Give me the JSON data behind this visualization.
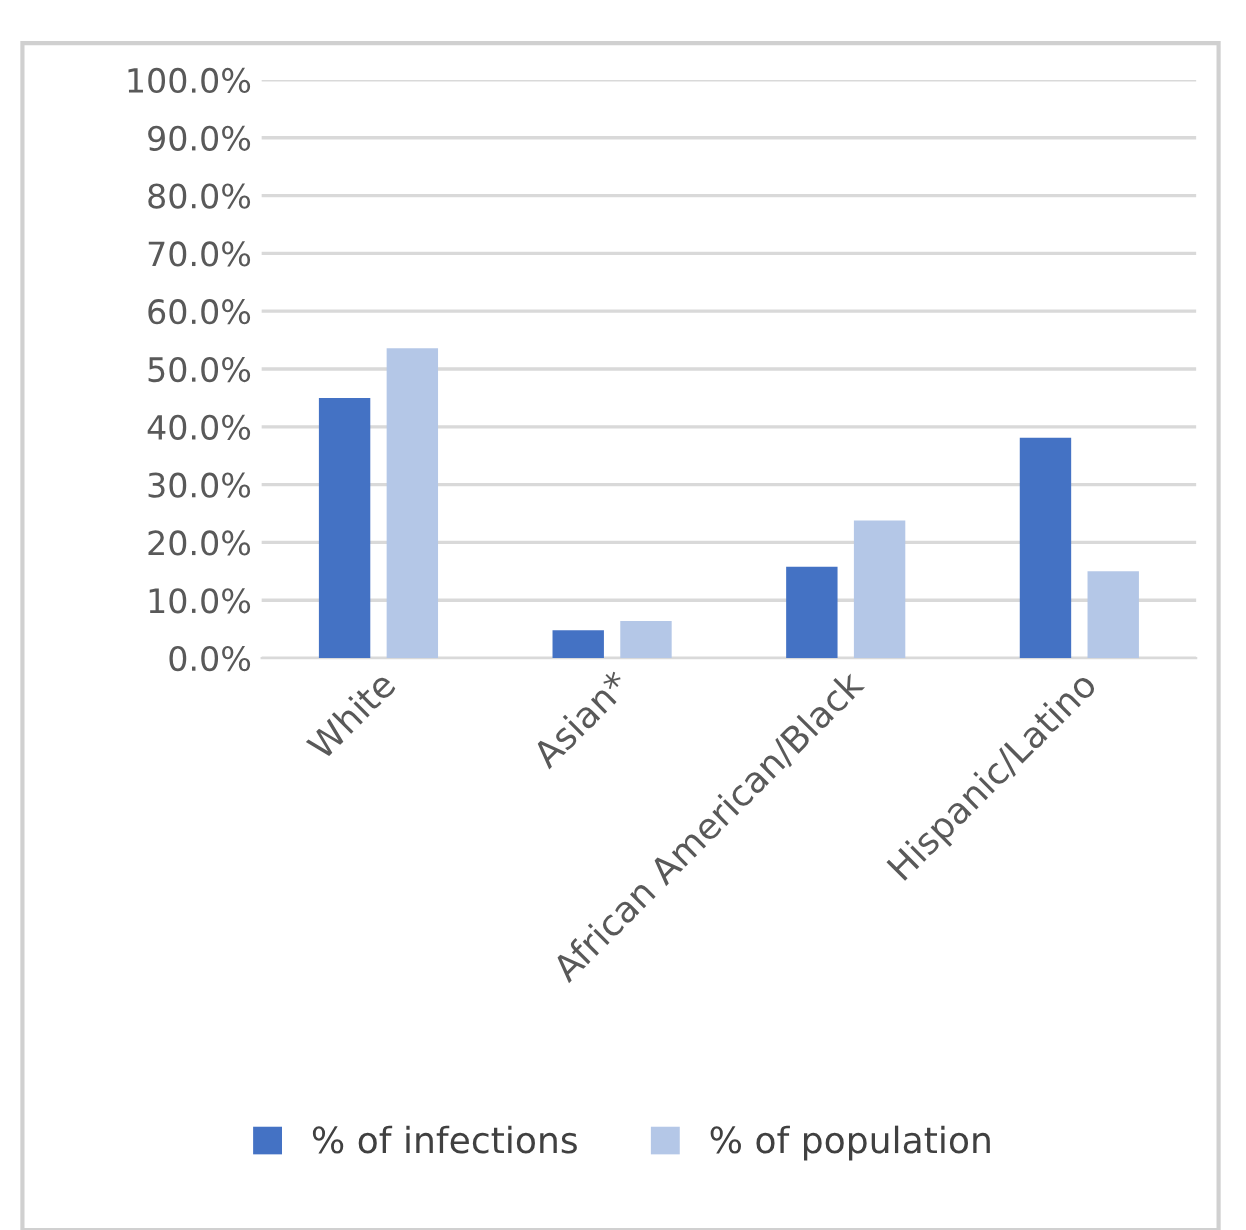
{
  "chart_data": {
    "type": "bar",
    "categories": [
      "White",
      "Asian*",
      "African American/Black",
      "Hispanic/Latino"
    ],
    "series": [
      {
        "name": "% of infections",
        "color": "#4472c4",
        "values": [
          45.0,
          4.8,
          15.8,
          38.1
        ]
      },
      {
        "name": "% of population",
        "color": "#b4c7e7",
        "values": [
          53.6,
          6.4,
          23.8,
          15.0
        ]
      }
    ],
    "ylim": [
      0,
      100
    ],
    "yticks": [
      {
        "value": 0,
        "label": "0.0%"
      },
      {
        "value": 10,
        "label": "10.0%"
      },
      {
        "value": 20,
        "label": "20.0%"
      },
      {
        "value": 30,
        "label": "30.0%"
      },
      {
        "value": 40,
        "label": "40.0%"
      },
      {
        "value": 50,
        "label": "50.0%"
      },
      {
        "value": 60,
        "label": "60.0%"
      },
      {
        "value": 70,
        "label": "70.0%"
      },
      {
        "value": 80,
        "label": "80.0%"
      },
      {
        "value": 90,
        "label": "90.0%"
      },
      {
        "value": 100,
        "label": "100.0%"
      }
    ],
    "grid": "y",
    "legend": "bottom"
  }
}
